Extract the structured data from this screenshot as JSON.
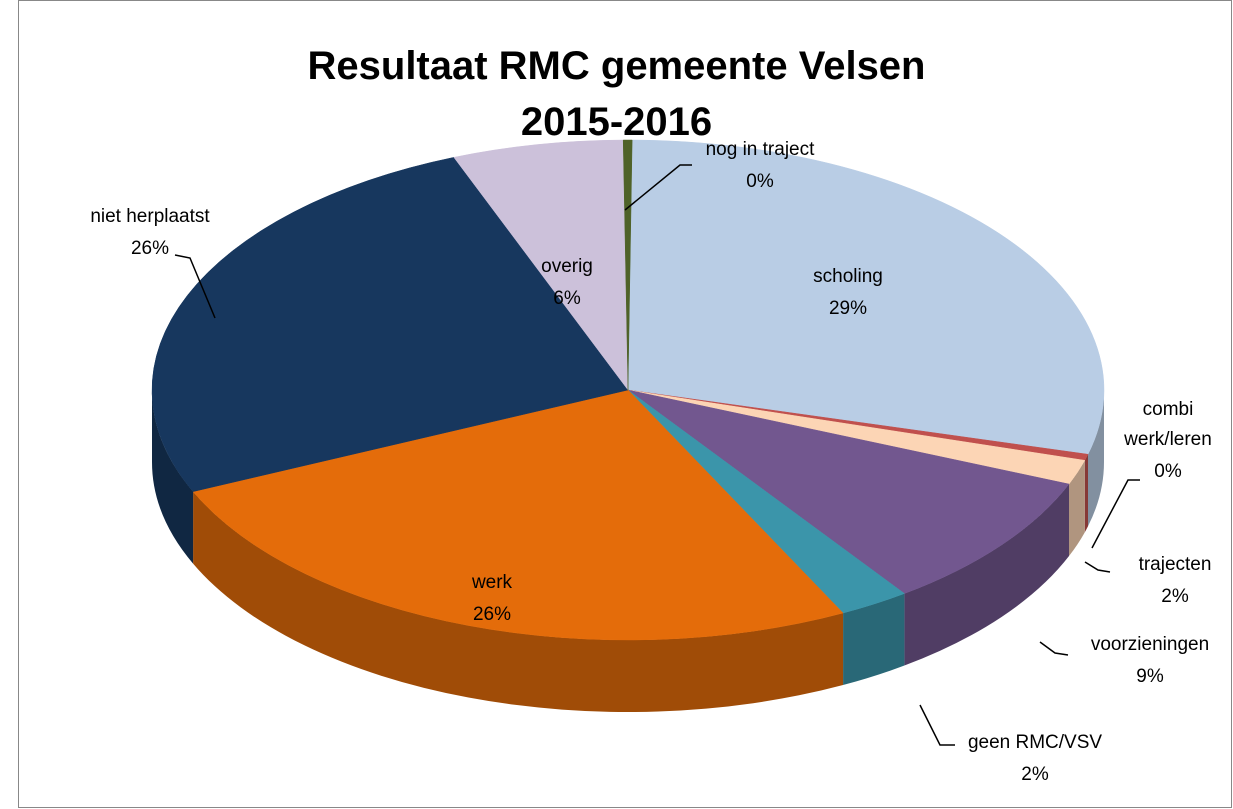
{
  "chart_data": {
    "type": "pie",
    "title": "Resultaat RMC gemeente Velsen 2015-2016",
    "categories": [
      "scholing",
      "combi werk/leren",
      "trajecten",
      "voorzieningen",
      "geen RMC/VSV",
      "werk",
      "niet herplaatst",
      "overig",
      "nog in traject"
    ],
    "values": [
      29,
      0.4,
      1.6,
      9,
      2.4,
      25.8,
      25.7,
      5.8,
      0.3
    ],
    "value_labels": [
      "29%",
      "0%",
      "2%",
      "9%",
      "2%",
      "26%",
      "26%",
      "6%",
      "0%"
    ],
    "colors": [
      "#b9cde5",
      "#c0504d",
      "#fcd5b5",
      "#72578f",
      "#3b95aa",
      "#e46c0a",
      "#17375e",
      "#ccc1da",
      "#4f6228"
    ]
  }
}
